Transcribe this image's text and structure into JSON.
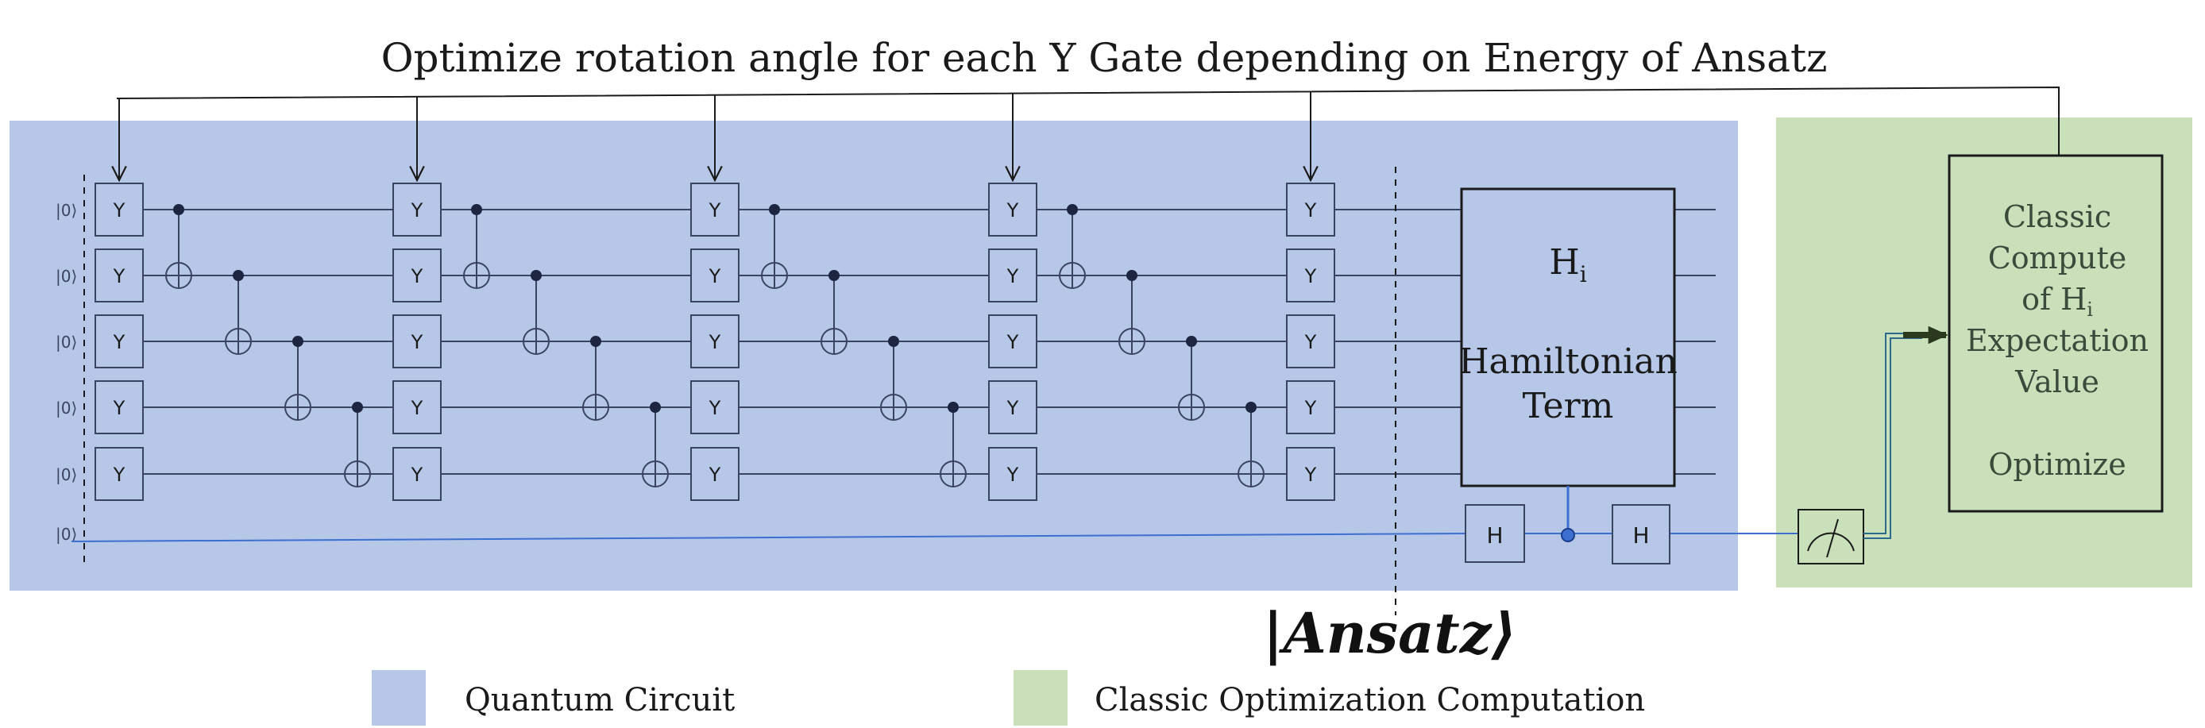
{
  "title": "Optimize rotation angle for each Y Gate depending on Energy of Ansatz",
  "qubit_label": "|0⟩",
  "gate_y_label": "Y",
  "gate_h_label": "H",
  "hamiltonian": {
    "symbol": "H",
    "subscript": "i",
    "line1": "Hamiltonian",
    "line2": "Term"
  },
  "classic_box": {
    "line1": "Classic",
    "line2": "Compute",
    "line3_prefix": "of H",
    "line3_sub": "i",
    "line4": "Expectation",
    "line5": "Value",
    "line6": "Optimize"
  },
  "ansatz_label": "|Ansatz⟩",
  "legend": [
    {
      "label": "Quantum Circuit",
      "color": "#b7c7e8"
    },
    {
      "label": "Classic Optimization Computation",
      "color": "#c9e0bb"
    }
  ],
  "colors": {
    "quantum_bg": "#b7c7e8",
    "classic_bg": "#c9e0bb",
    "wire": "#3a4460",
    "ancilla_wire": "#3c6fd0",
    "text_dark": "#1a1a1a",
    "classic_text": "#3c4a3c",
    "arrow_dark": "#2b3a1f"
  }
}
